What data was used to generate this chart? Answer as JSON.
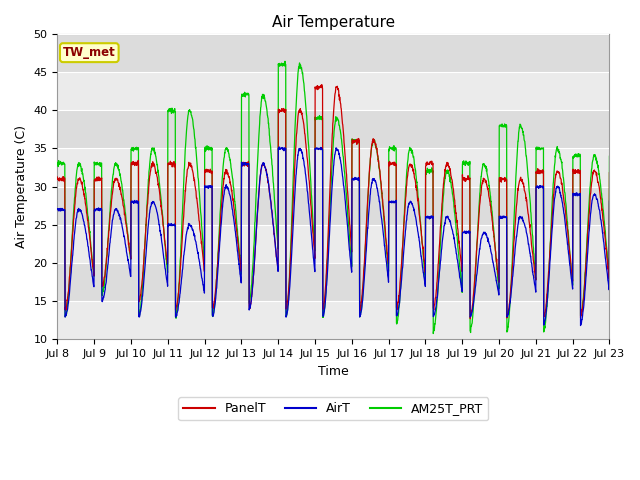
{
  "title": "Air Temperature",
  "xlabel": "Time",
  "ylabel": "Air Temperature (C)",
  "ylim": [
    10,
    50
  ],
  "annotation_text": "TW_met",
  "annotation_bg": "#FFFFCC",
  "annotation_border": "#CCCC00",
  "annotation_fg": "#8B0000",
  "plot_bg_light": "#EBEBEB",
  "plot_bg_dark": "#DCDCDC",
  "legend_labels": [
    "PanelT",
    "AirT",
    "AM25T_PRT"
  ],
  "legend_colors": [
    "#CC0000",
    "#0000CC",
    "#00CC00"
  ],
  "xtick_labels": [
    "Jul 8",
    "Jul 9",
    "Jul 10",
    "Jul 11",
    "Jul 12",
    "Jul 13",
    "Jul 14",
    "Jul 15",
    "Jul 16",
    "Jul 17",
    "Jul 18",
    "Jul 19",
    "Jul 20",
    "Jul 21",
    "Jul 22",
    "Jul 23"
  ],
  "yticks": [
    10,
    15,
    20,
    25,
    30,
    35,
    40,
    45,
    50
  ],
  "panel_maxes": [
    31,
    31,
    33,
    33,
    32,
    33,
    40,
    43,
    36,
    33,
    33,
    31,
    31,
    32,
    32,
    32
  ],
  "panel_mins": [
    14,
    17,
    15,
    14,
    14,
    14,
    14,
    14,
    14,
    14,
    14,
    13,
    13,
    13,
    13,
    13
  ],
  "air_maxes": [
    27,
    27,
    28,
    25,
    30,
    33,
    35,
    35,
    31,
    28,
    26,
    24,
    26,
    30,
    29,
    28
  ],
  "air_mins": [
    13,
    15,
    13,
    13,
    13,
    14,
    13,
    13,
    13,
    13,
    13,
    13,
    13,
    12,
    12,
    12
  ],
  "am25_maxes": [
    33,
    33,
    35,
    40,
    35,
    42,
    46,
    39,
    36,
    35,
    32,
    33,
    38,
    35,
    34,
    34
  ],
  "am25_mins": [
    13,
    16,
    13,
    13,
    13,
    15,
    13,
    13,
    13,
    12,
    11,
    11,
    11,
    11,
    13,
    13
  ],
  "peak_hour": 14,
  "trough_hour": 5,
  "total_days": 15
}
